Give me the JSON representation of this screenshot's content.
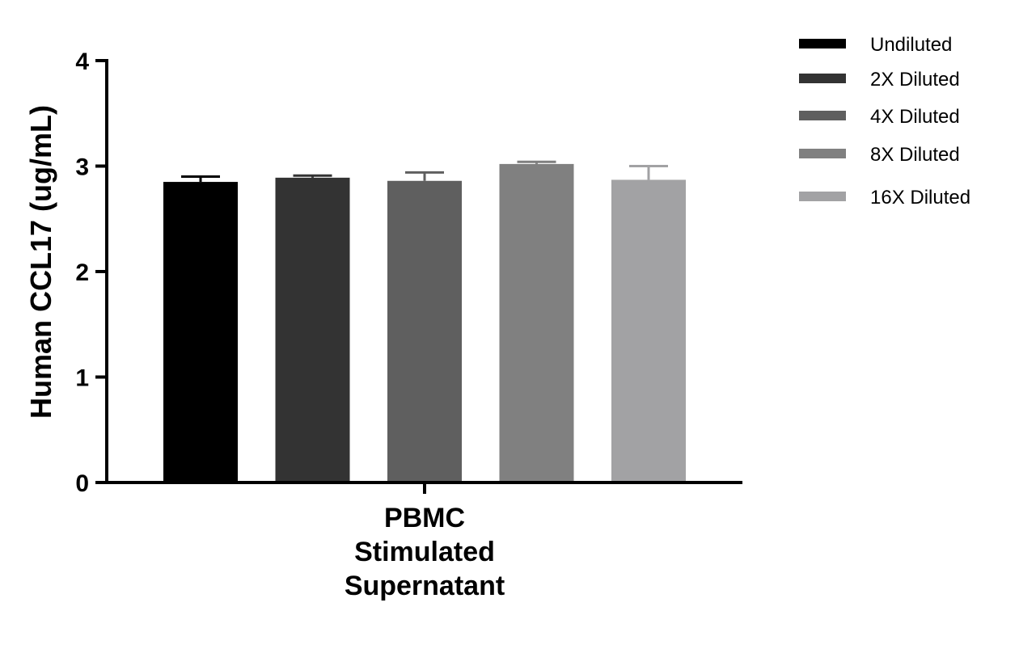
{
  "chart_data": {
    "type": "bar",
    "title": "",
    "xlabel": "",
    "ylabel": "Human CCL17 (ug/mL)",
    "ylim": [
      0,
      4
    ],
    "yticks": [
      0,
      1,
      2,
      3,
      4
    ],
    "categories": [
      "PBMC Stimulated Supernatant"
    ],
    "category_lines": [
      "PBMC",
      "Stimulated",
      "Supernatant"
    ],
    "grid": false,
    "legend_position": "top-right",
    "series": [
      {
        "name": "Undiluted",
        "values": [
          2.85
        ],
        "error": [
          0.05
        ],
        "color": "#000000"
      },
      {
        "name": "2X Diluted",
        "values": [
          2.89
        ],
        "error": [
          0.02
        ],
        "color": "#333333"
      },
      {
        "name": "4X Diluted",
        "values": [
          2.86
        ],
        "error": [
          0.08
        ],
        "color": "#5f5f5f"
      },
      {
        "name": "8X Diluted",
        "values": [
          3.02
        ],
        "error": [
          0.02
        ],
        "color": "#808080"
      },
      {
        "name": "16X Diluted",
        "values": [
          2.87
        ],
        "error": [
          0.13
        ],
        "color": "#a2a2a4"
      }
    ]
  }
}
